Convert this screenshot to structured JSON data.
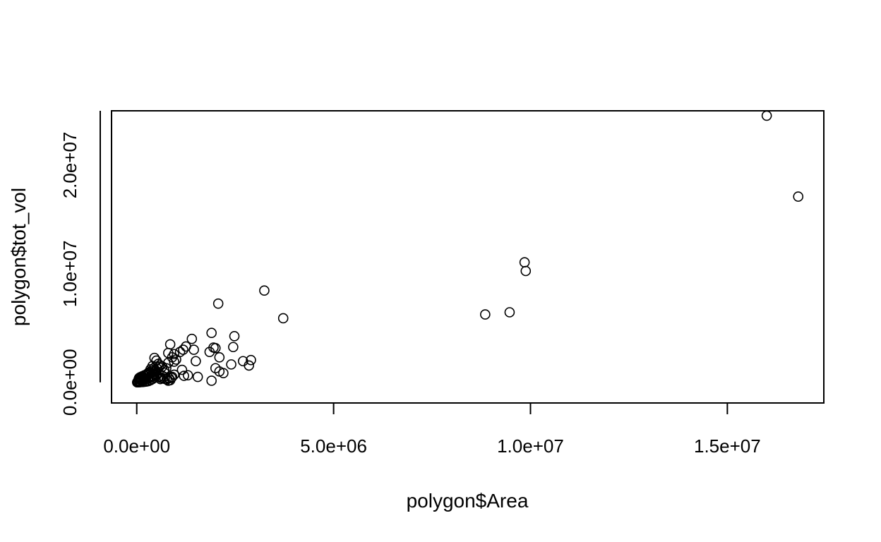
{
  "chart_data": {
    "type": "scatter",
    "title": "",
    "xlabel": "polygon$Area",
    "ylabel": "polygon$tot_vol",
    "xlim": [
      -640000,
      17450000
    ],
    "ylim": [
      -1900000,
      25000000
    ],
    "x_ticks": [
      0,
      5000000,
      10000000,
      15000000
    ],
    "x_tick_labels": [
      "0.0e+00",
      "5.0e+06",
      "1.0e+07",
      "1.5e+07"
    ],
    "y_ticks": [
      0,
      5000000,
      10000000,
      15000000,
      20000000,
      25000000
    ],
    "y_tick_labels": [
      "0.0e+00",
      "",
      "1.0e+07",
      "",
      "2.0e+07",
      ""
    ],
    "grid": false,
    "marker": "open-circle",
    "color": "#000000",
    "points": [
      [
        16000000,
        24550000
      ],
      [
        16800000,
        17100000
      ],
      [
        9850000,
        11050000
      ],
      [
        9880000,
        10250000
      ],
      [
        8850000,
        6250000
      ],
      [
        9470000,
        6450000
      ],
      [
        3240000,
        8450000
      ],
      [
        3720000,
        5900000
      ],
      [
        2070000,
        7250000
      ],
      [
        1900000,
        4550000
      ],
      [
        2480000,
        4250000
      ],
      [
        2450000,
        3250000
      ],
      [
        1950000,
        3200000
      ],
      [
        2000000,
        3150000
      ],
      [
        2100000,
        2300000
      ],
      [
        1850000,
        2800000
      ],
      [
        1400000,
        4000000
      ],
      [
        1250000,
        3300000
      ],
      [
        1180000,
        3000000
      ],
      [
        1100000,
        2800000
      ],
      [
        850000,
        3500000
      ],
      [
        800000,
        2700000
      ],
      [
        1450000,
        3000000
      ],
      [
        1500000,
        1950000
      ],
      [
        2700000,
        1950000
      ],
      [
        2850000,
        1550000
      ],
      [
        2900000,
        2050000
      ],
      [
        2400000,
        1650000
      ],
      [
        2200000,
        850000
      ],
      [
        2100000,
        1000000
      ],
      [
        2000000,
        1300000
      ],
      [
        1900000,
        150000
      ],
      [
        1550000,
        500000
      ],
      [
        1300000,
        650000
      ],
      [
        1200000,
        600000
      ],
      [
        1150000,
        1150000
      ],
      [
        950000,
        1900000
      ],
      [
        900000,
        2300000
      ],
      [
        950000,
        2600000
      ],
      [
        1000000,
        2100000
      ],
      [
        800000,
        1800000
      ],
      [
        750000,
        1300000
      ],
      [
        700000,
        900000
      ],
      [
        650000,
        600000
      ],
      [
        600000,
        300000
      ],
      [
        900000,
        500000
      ],
      [
        850000,
        200000
      ],
      [
        800000,
        150000
      ],
      [
        950000,
        700000
      ],
      [
        450000,
        2250000
      ],
      [
        500000,
        2000000
      ],
      [
        550000,
        1700000
      ],
      [
        400000,
        1500000
      ],
      [
        350000,
        1200000
      ],
      [
        450000,
        1000000
      ],
      [
        300000,
        900000
      ],
      [
        250000,
        700000
      ],
      [
        200000,
        600000
      ],
      [
        150000,
        500000
      ],
      [
        100000,
        400000
      ],
      [
        50000,
        300000
      ],
      [
        30000,
        100000
      ],
      [
        60000,
        150000
      ],
      [
        80000,
        250000
      ],
      [
        120000,
        350000
      ],
      [
        180000,
        450000
      ],
      [
        220000,
        550000
      ],
      [
        260000,
        650000
      ],
      [
        320000,
        750000
      ],
      [
        380000,
        850000
      ],
      [
        420000,
        950000
      ],
      [
        480000,
        1100000
      ],
      [
        520000,
        1250000
      ],
      [
        560000,
        1400000
      ],
      [
        600000,
        1550000
      ],
      [
        650000,
        1450000
      ],
      [
        700000,
        1150000
      ],
      [
        550000,
        850000
      ],
      [
        500000,
        650000
      ],
      [
        450000,
        450000
      ],
      [
        400000,
        300000
      ],
      [
        350000,
        200000
      ],
      [
        300000,
        120000
      ],
      [
        250000,
        80000
      ],
      [
        200000,
        50000
      ],
      [
        150000,
        30000
      ],
      [
        100000,
        20000
      ],
      [
        70000,
        10000
      ],
      [
        40000,
        5000
      ],
      [
        20000,
        2000
      ],
      [
        10000,
        1000
      ],
      [
        130000,
        180000
      ],
      [
        170000,
        220000
      ],
      [
        230000,
        280000
      ],
      [
        280000,
        330000
      ],
      [
        330000,
        420000
      ],
      [
        370000,
        500000
      ],
      [
        410000,
        580000
      ],
      [
        460000,
        720000
      ],
      [
        510000,
        780000
      ],
      [
        560000,
        520000
      ],
      [
        610000,
        420000
      ],
      [
        660000,
        380000
      ],
      [
        710000,
        320000
      ],
      [
        760000,
        260000
      ],
      [
        820000,
        380000
      ],
      [
        880000,
        420000
      ],
      [
        430000,
        1300000
      ],
      [
        380000,
        1050000
      ],
      [
        330000,
        950000
      ],
      [
        290000,
        800000
      ],
      [
        240000,
        720000
      ],
      [
        190000,
        640000
      ],
      [
        140000,
        560000
      ],
      [
        90000,
        480000
      ],
      [
        60000,
        400000
      ],
      [
        110000,
        280000
      ],
      [
        160000,
        320000
      ],
      [
        210000,
        380000
      ]
    ]
  }
}
